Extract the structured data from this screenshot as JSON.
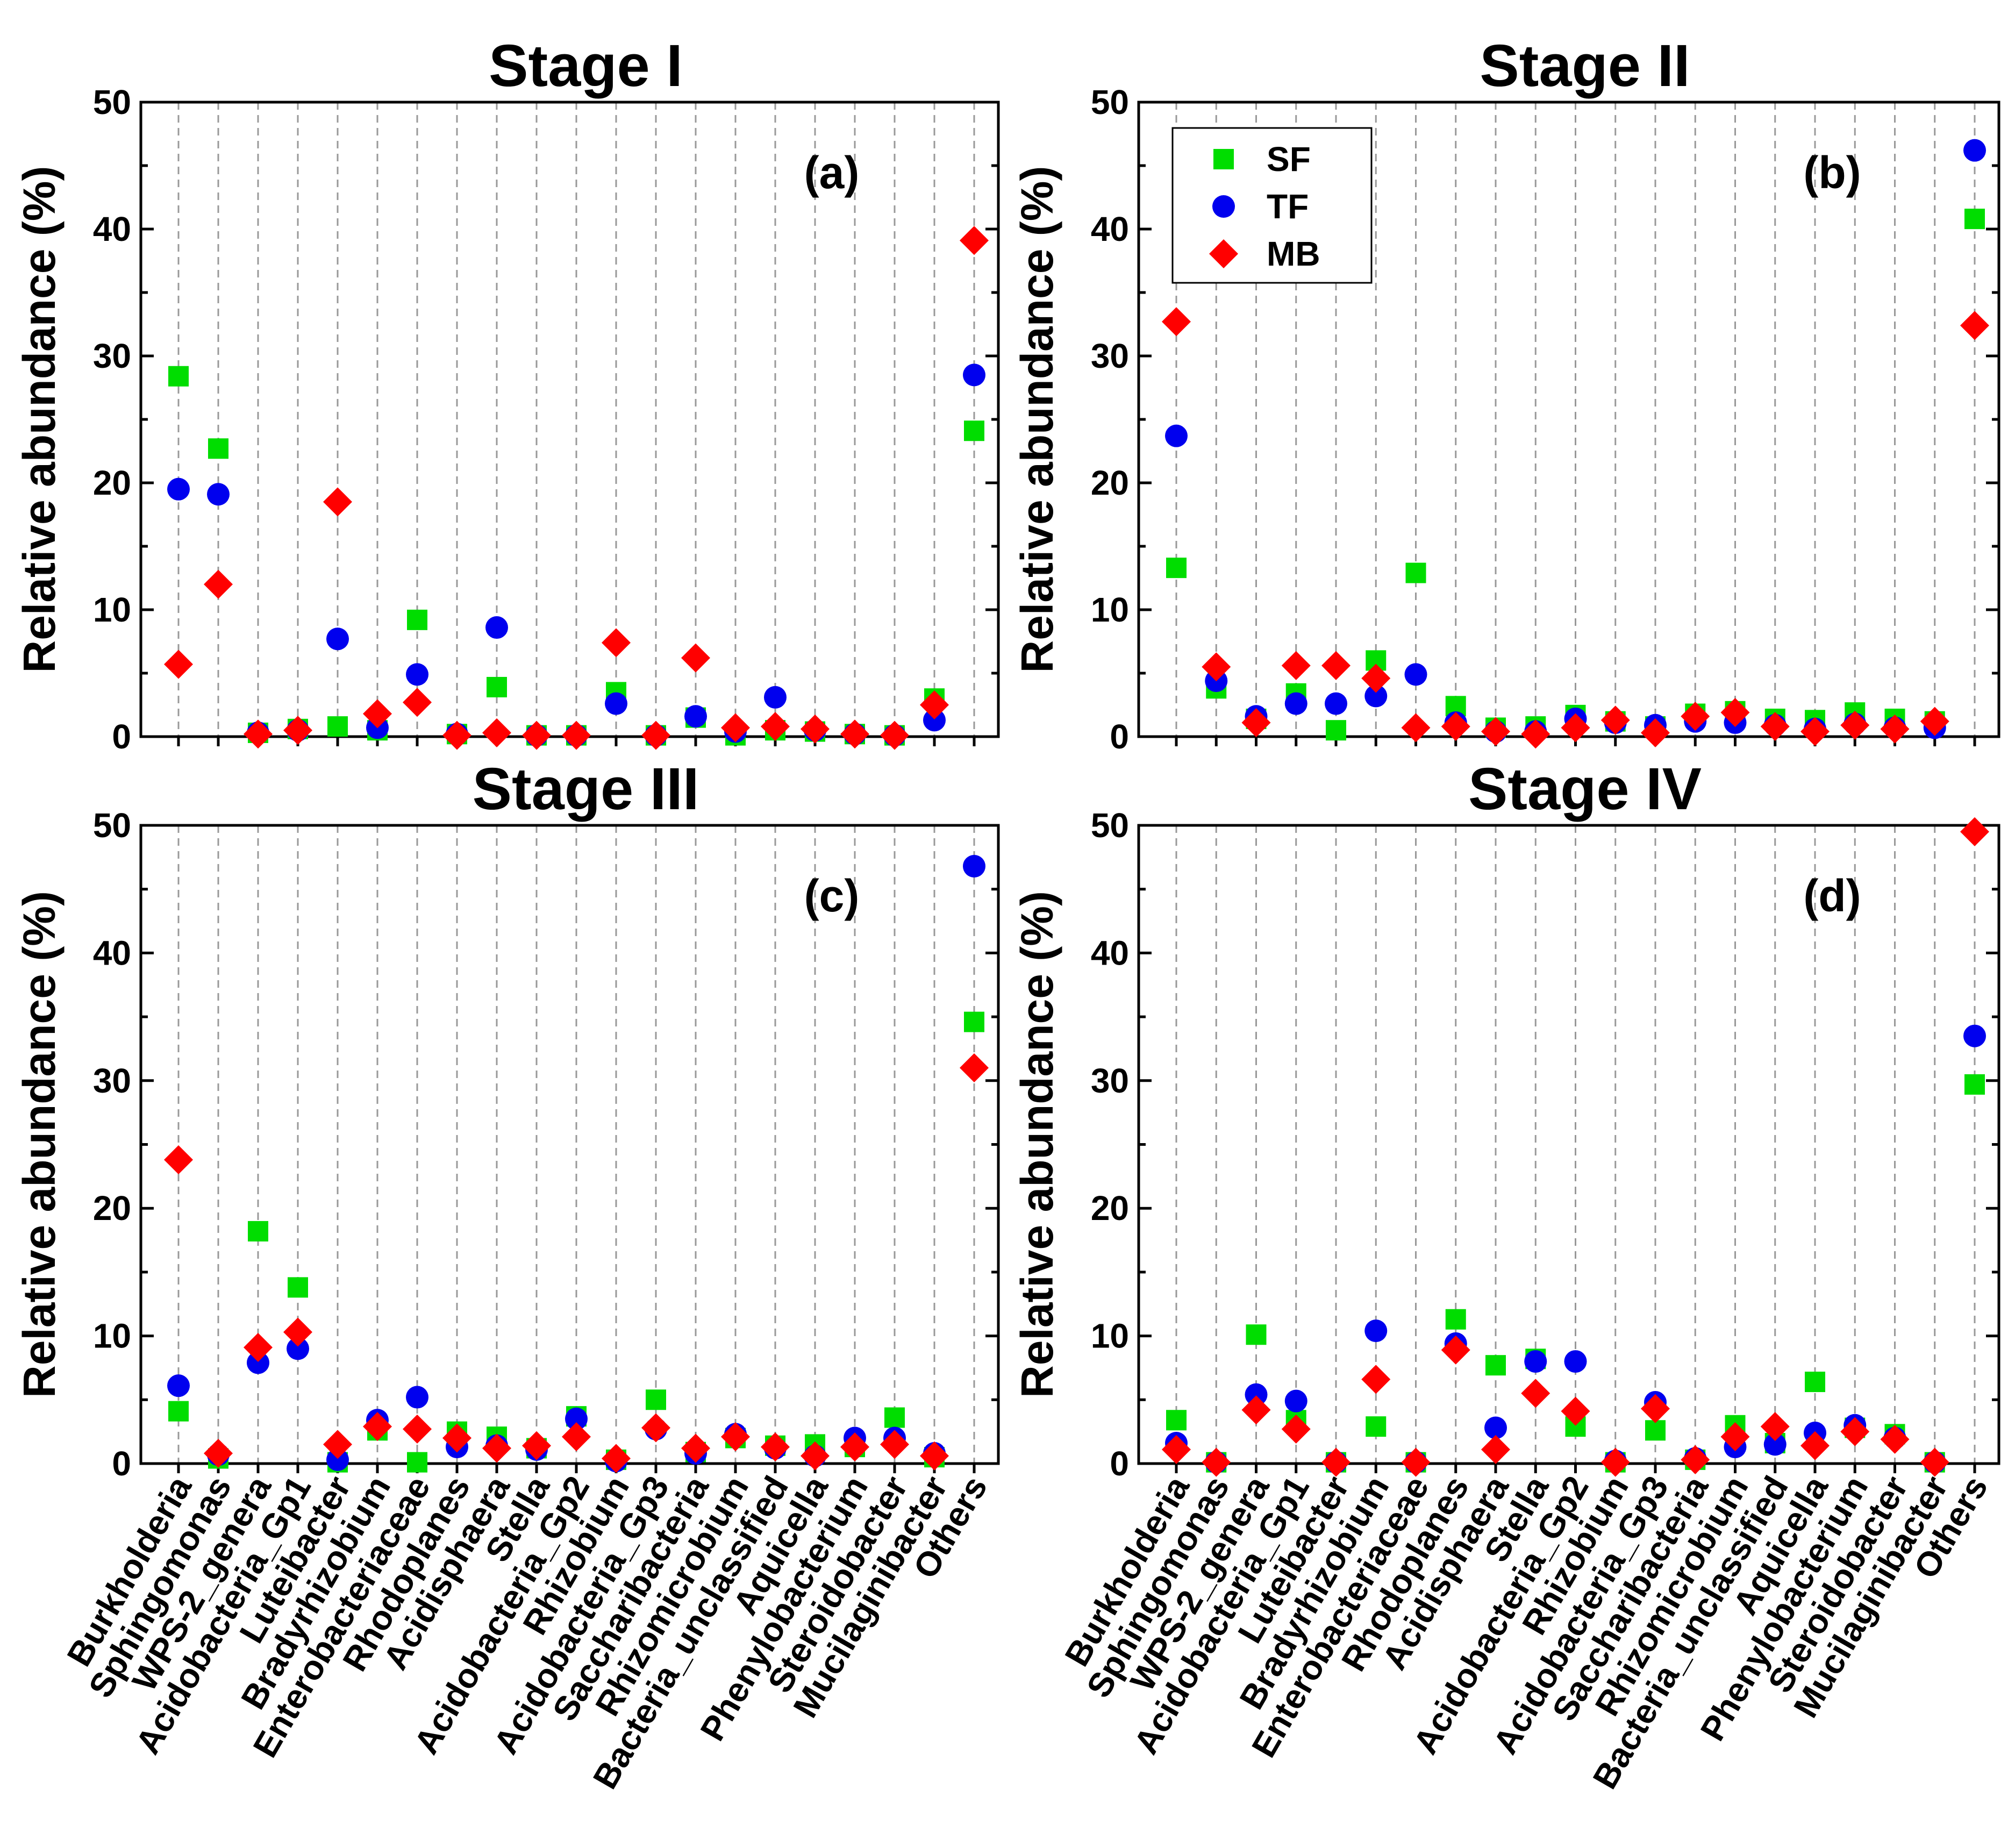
{
  "chart_data": [
    {
      "type": "scatter",
      "title": "Stage I",
      "panel_label": "(a)",
      "ylabel": "Relative abundance (%)",
      "ylim": [
        0,
        50
      ],
      "yticks": [
        "0",
        "10",
        "20",
        "30",
        "40",
        "50"
      ],
      "categories": [
        "Burkholderia",
        "Sphingomonas",
        "WPS-2_genera",
        "Acidobacteria_Gp1",
        "Luteibacter",
        "Bradyrhizobium",
        "Enterobacteriaceae",
        "Rhodoplanes",
        "Acidisphaera",
        "Stella",
        "Acidobacteria_Gp2",
        "Rhizobium",
        "Acidobacteria_Gp3",
        "Saccharibacteria",
        "Rhizomicrobium",
        "Bacteria_unclassified",
        "Aquicella",
        "Phenylobacterium",
        "Steroidobacter",
        "Mucilaginibacter",
        "Others"
      ],
      "show_xticklabels": false,
      "series": [
        {
          "name": "SF",
          "marker": "square",
          "color": "#00dd00",
          "values": [
            28.4,
            22.7,
            0.3,
            0.6,
            0.8,
            0.5,
            9.2,
            0.2,
            3.9,
            0.1,
            0.1,
            3.5,
            0.1,
            1.5,
            0.1,
            0.5,
            0.4,
            0.2,
            0.1,
            3.0,
            24.1
          ]
        },
        {
          "name": "TF",
          "marker": "circle",
          "color": "#0000ee",
          "values": [
            19.5,
            19.1,
            0.3,
            0.5,
            7.7,
            0.7,
            4.9,
            0.2,
            8.6,
            0.1,
            0.1,
            2.6,
            0.1,
            1.6,
            0.4,
            3.1,
            0.5,
            0.2,
            0.1,
            1.3,
            28.5
          ]
        },
        {
          "name": "MB",
          "marker": "diamond",
          "color": "#ff0000",
          "values": [
            5.7,
            12.0,
            0.2,
            0.5,
            18.5,
            1.8,
            2.7,
            0.1,
            0.3,
            0.1,
            0.1,
            7.4,
            0.1,
            6.2,
            0.7,
            0.8,
            0.6,
            0.2,
            0.1,
            2.5,
            39.1
          ]
        }
      ]
    },
    {
      "type": "scatter",
      "title": "Stage II",
      "panel_label": "(b)",
      "ylabel": "Relative abundance (%)",
      "ylim": [
        0,
        50
      ],
      "yticks": [
        "0",
        "10",
        "20",
        "30",
        "40",
        "50"
      ],
      "categories": [
        "Burkholderia",
        "Sphingomonas",
        "WPS-2_genera",
        "Acidobacteria_Gp1",
        "Luteibacter",
        "Bradyrhizobium",
        "Enterobacteriaceae",
        "Rhodoplanes",
        "Acidisphaera",
        "Stella",
        "Acidobacteria_Gp2",
        "Rhizobium",
        "Acidobacteria_Gp3",
        "Saccharibacteria",
        "Rhizomicrobium",
        "Bacteria_unclassified",
        "Aquicella",
        "Phenylobacterium",
        "Steroidobacter",
        "Mucilaginibacter",
        "Others"
      ],
      "show_xticklabels": false,
      "legend": {
        "entries": [
          "SF",
          "TF",
          "MB"
        ],
        "location": "upper-left"
      },
      "series": [
        {
          "name": "SF",
          "marker": "square",
          "color": "#00dd00",
          "values": [
            13.3,
            3.8,
            1.4,
            3.4,
            0.5,
            6.0,
            12.9,
            2.4,
            0.7,
            0.8,
            1.7,
            1.2,
            0.8,
            1.8,
            2.0,
            1.4,
            1.3,
            1.9,
            1.4,
            1.2,
            40.8
          ]
        },
        {
          "name": "TF",
          "marker": "circle",
          "color": "#0000ee",
          "values": [
            23.7,
            4.4,
            1.6,
            2.6,
            2.6,
            3.2,
            4.9,
            1.1,
            0.4,
            0.4,
            1.4,
            1.1,
            0.9,
            1.2,
            1.1,
            0.9,
            0.6,
            1.0,
            0.7,
            0.7,
            46.2
          ]
        },
        {
          "name": "MB",
          "marker": "diamond",
          "color": "#ff0000",
          "values": [
            32.7,
            5.5,
            1.1,
            5.6,
            5.6,
            4.6,
            0.7,
            0.8,
            0.4,
            0.2,
            0.7,
            1.3,
            0.3,
            1.6,
            1.9,
            0.8,
            0.4,
            0.9,
            0.6,
            1.2,
            32.4
          ]
        }
      ]
    },
    {
      "type": "scatter",
      "title": "Stage III",
      "panel_label": "(c)",
      "ylabel": "Relative abundance (%)",
      "ylim": [
        0,
        50
      ],
      "yticks": [
        "0",
        "10",
        "20",
        "30",
        "40",
        "50"
      ],
      "categories": [
        "Burkholderia",
        "Sphingomonas",
        "WPS-2_genera",
        "Acidobacteria_Gp1",
        "Luteibacter",
        "Bradyrhizobium",
        "Enterobacteriaceae",
        "Rhodoplanes",
        "Acidisphaera",
        "Stella",
        "Acidobacteria_Gp2",
        "Rhizobium",
        "Acidobacteria_Gp3",
        "Saccharibacteria",
        "Rhizomicrobium",
        "Bacteria_unclassified",
        "Aquicella",
        "Phenylobacterium",
        "Steroidobacter",
        "Mucilaginibacter",
        "Others"
      ],
      "show_xticklabels": true,
      "series": [
        {
          "name": "SF",
          "marker": "square",
          "color": "#00dd00",
          "values": [
            4.1,
            0.4,
            18.2,
            13.8,
            0.1,
            2.6,
            0.1,
            2.5,
            2.1,
            1.2,
            3.7,
            0.3,
            5.0,
            0.9,
            2.0,
            1.4,
            1.5,
            1.3,
            3.6,
            0.5,
            34.6
          ]
        },
        {
          "name": "TF",
          "marker": "circle",
          "color": "#0000ee",
          "values": [
            6.1,
            0.7,
            7.9,
            9.0,
            0.3,
            3.4,
            5.2,
            1.3,
            1.4,
            1.1,
            3.5,
            0.2,
            2.7,
            0.8,
            2.3,
            1.2,
            0.6,
            2.0,
            2.0,
            0.8,
            46.8
          ]
        },
        {
          "name": "MB",
          "marker": "diamond",
          "color": "#ff0000",
          "values": [
            23.8,
            0.8,
            9.1,
            10.3,
            1.5,
            2.9,
            2.7,
            2.0,
            1.2,
            1.4,
            2.1,
            0.4,
            2.8,
            1.2,
            2.1,
            1.3,
            0.6,
            1.3,
            1.5,
            0.6,
            31.0
          ]
        }
      ]
    },
    {
      "type": "scatter",
      "title": "Stage IV",
      "panel_label": "(d)",
      "ylabel": "Relative abundance (%)",
      "ylim": [
        0,
        50
      ],
      "yticks": [
        "0",
        "10",
        "20",
        "30",
        "40",
        "50"
      ],
      "categories": [
        "Burkholderia",
        "Sphingomonas",
        "WPS-2_genera",
        "Acidobacteria_Gp1",
        "Luteibacter",
        "Bradyrhizobium",
        "Enterobacteriaceae",
        "Rhodoplanes",
        "Acidisphaera",
        "Stella",
        "Acidobacteria_Gp2",
        "Rhizobium",
        "Acidobacteria_Gp3",
        "Saccharibacteria",
        "Rhizomicrobium",
        "Bacteria_unclassified",
        "Aquicella",
        "Phenylobacterium",
        "Steroidobacter",
        "Mucilaginibacter",
        "Others"
      ],
      "show_xticklabels": true,
      "series": [
        {
          "name": "SF",
          "marker": "square",
          "color": "#00dd00",
          "values": [
            3.4,
            0.1,
            10.1,
            3.4,
            0.1,
            2.9,
            0.1,
            11.3,
            7.7,
            8.2,
            2.9,
            0.1,
            2.6,
            0.3,
            3.0,
            1.6,
            6.4,
            2.8,
            2.3,
            0.1,
            29.7
          ]
        },
        {
          "name": "TF",
          "marker": "circle",
          "color": "#0000ee",
          "values": [
            1.6,
            0.1,
            5.4,
            4.9,
            0.1,
            10.4,
            0.1,
            9.4,
            2.8,
            8.0,
            8.0,
            0.2,
            4.8,
            0.4,
            1.3,
            1.5,
            2.4,
            3.0,
            2.0,
            0.1,
            33.5
          ]
        },
        {
          "name": "MB",
          "marker": "diamond",
          "color": "#ff0000",
          "values": [
            1.1,
            0.1,
            4.2,
            2.7,
            0.1,
            6.6,
            0.1,
            8.9,
            1.1,
            5.5,
            4.1,
            0.1,
            4.3,
            0.3,
            2.1,
            2.9,
            1.4,
            2.5,
            1.9,
            0.1,
            49.5
          ]
        }
      ]
    }
  ]
}
